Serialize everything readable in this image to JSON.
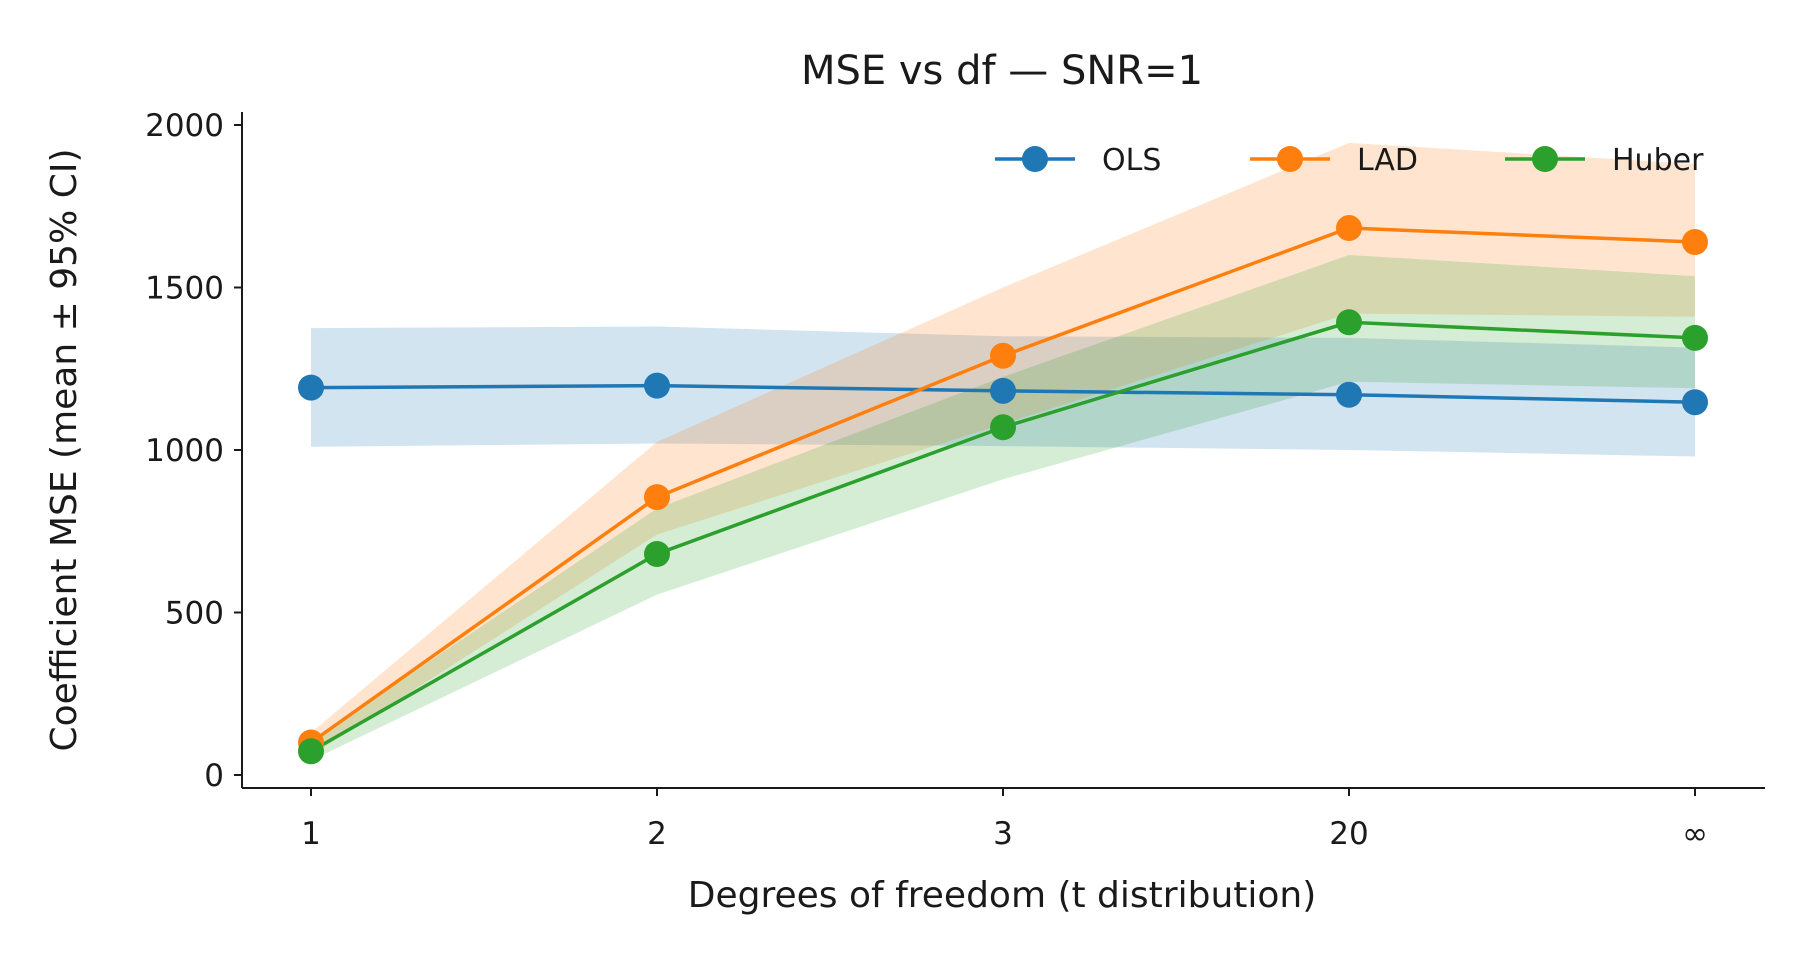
{
  "chart_data": {
    "type": "line",
    "title": "MSE vs df — SNR=1",
    "xlabel": "Degrees of freedom (t distribution)",
    "ylabel": "Coefficient MSE (mean ± 95% CI)",
    "categories": [
      "1",
      "2",
      "3",
      "20",
      "∞"
    ],
    "y_ticks": [
      "0",
      "500",
      "1000",
      "1500",
      "2000"
    ],
    "ylim": [
      -40,
      2040
    ],
    "grid": false,
    "legend_position": "top-right",
    "series": [
      {
        "name": "OLS",
        "color": "#1f77b4",
        "values": [
          1192,
          1198,
          1182,
          1170,
          1147
        ],
        "ci_low": [
          1010,
          1020,
          1012,
          1000,
          980
        ],
        "ci_high": [
          1375,
          1380,
          1350,
          1345,
          1315
        ]
      },
      {
        "name": "LAD",
        "color": "#ff7f0e",
        "values": [
          100,
          855,
          1290,
          1683,
          1640
        ],
        "ci_low": [
          60,
          740,
          1080,
          1420,
          1410
        ],
        "ci_high": [
          130,
          1025,
          1500,
          1945,
          1880
        ]
      },
      {
        "name": "Huber",
        "color": "#2ca02c",
        "values": [
          73,
          680,
          1070,
          1393,
          1345
        ],
        "ci_low": [
          45,
          555,
          910,
          1210,
          1190
        ],
        "ci_high": [
          105,
          820,
          1225,
          1600,
          1535
        ]
      }
    ]
  }
}
